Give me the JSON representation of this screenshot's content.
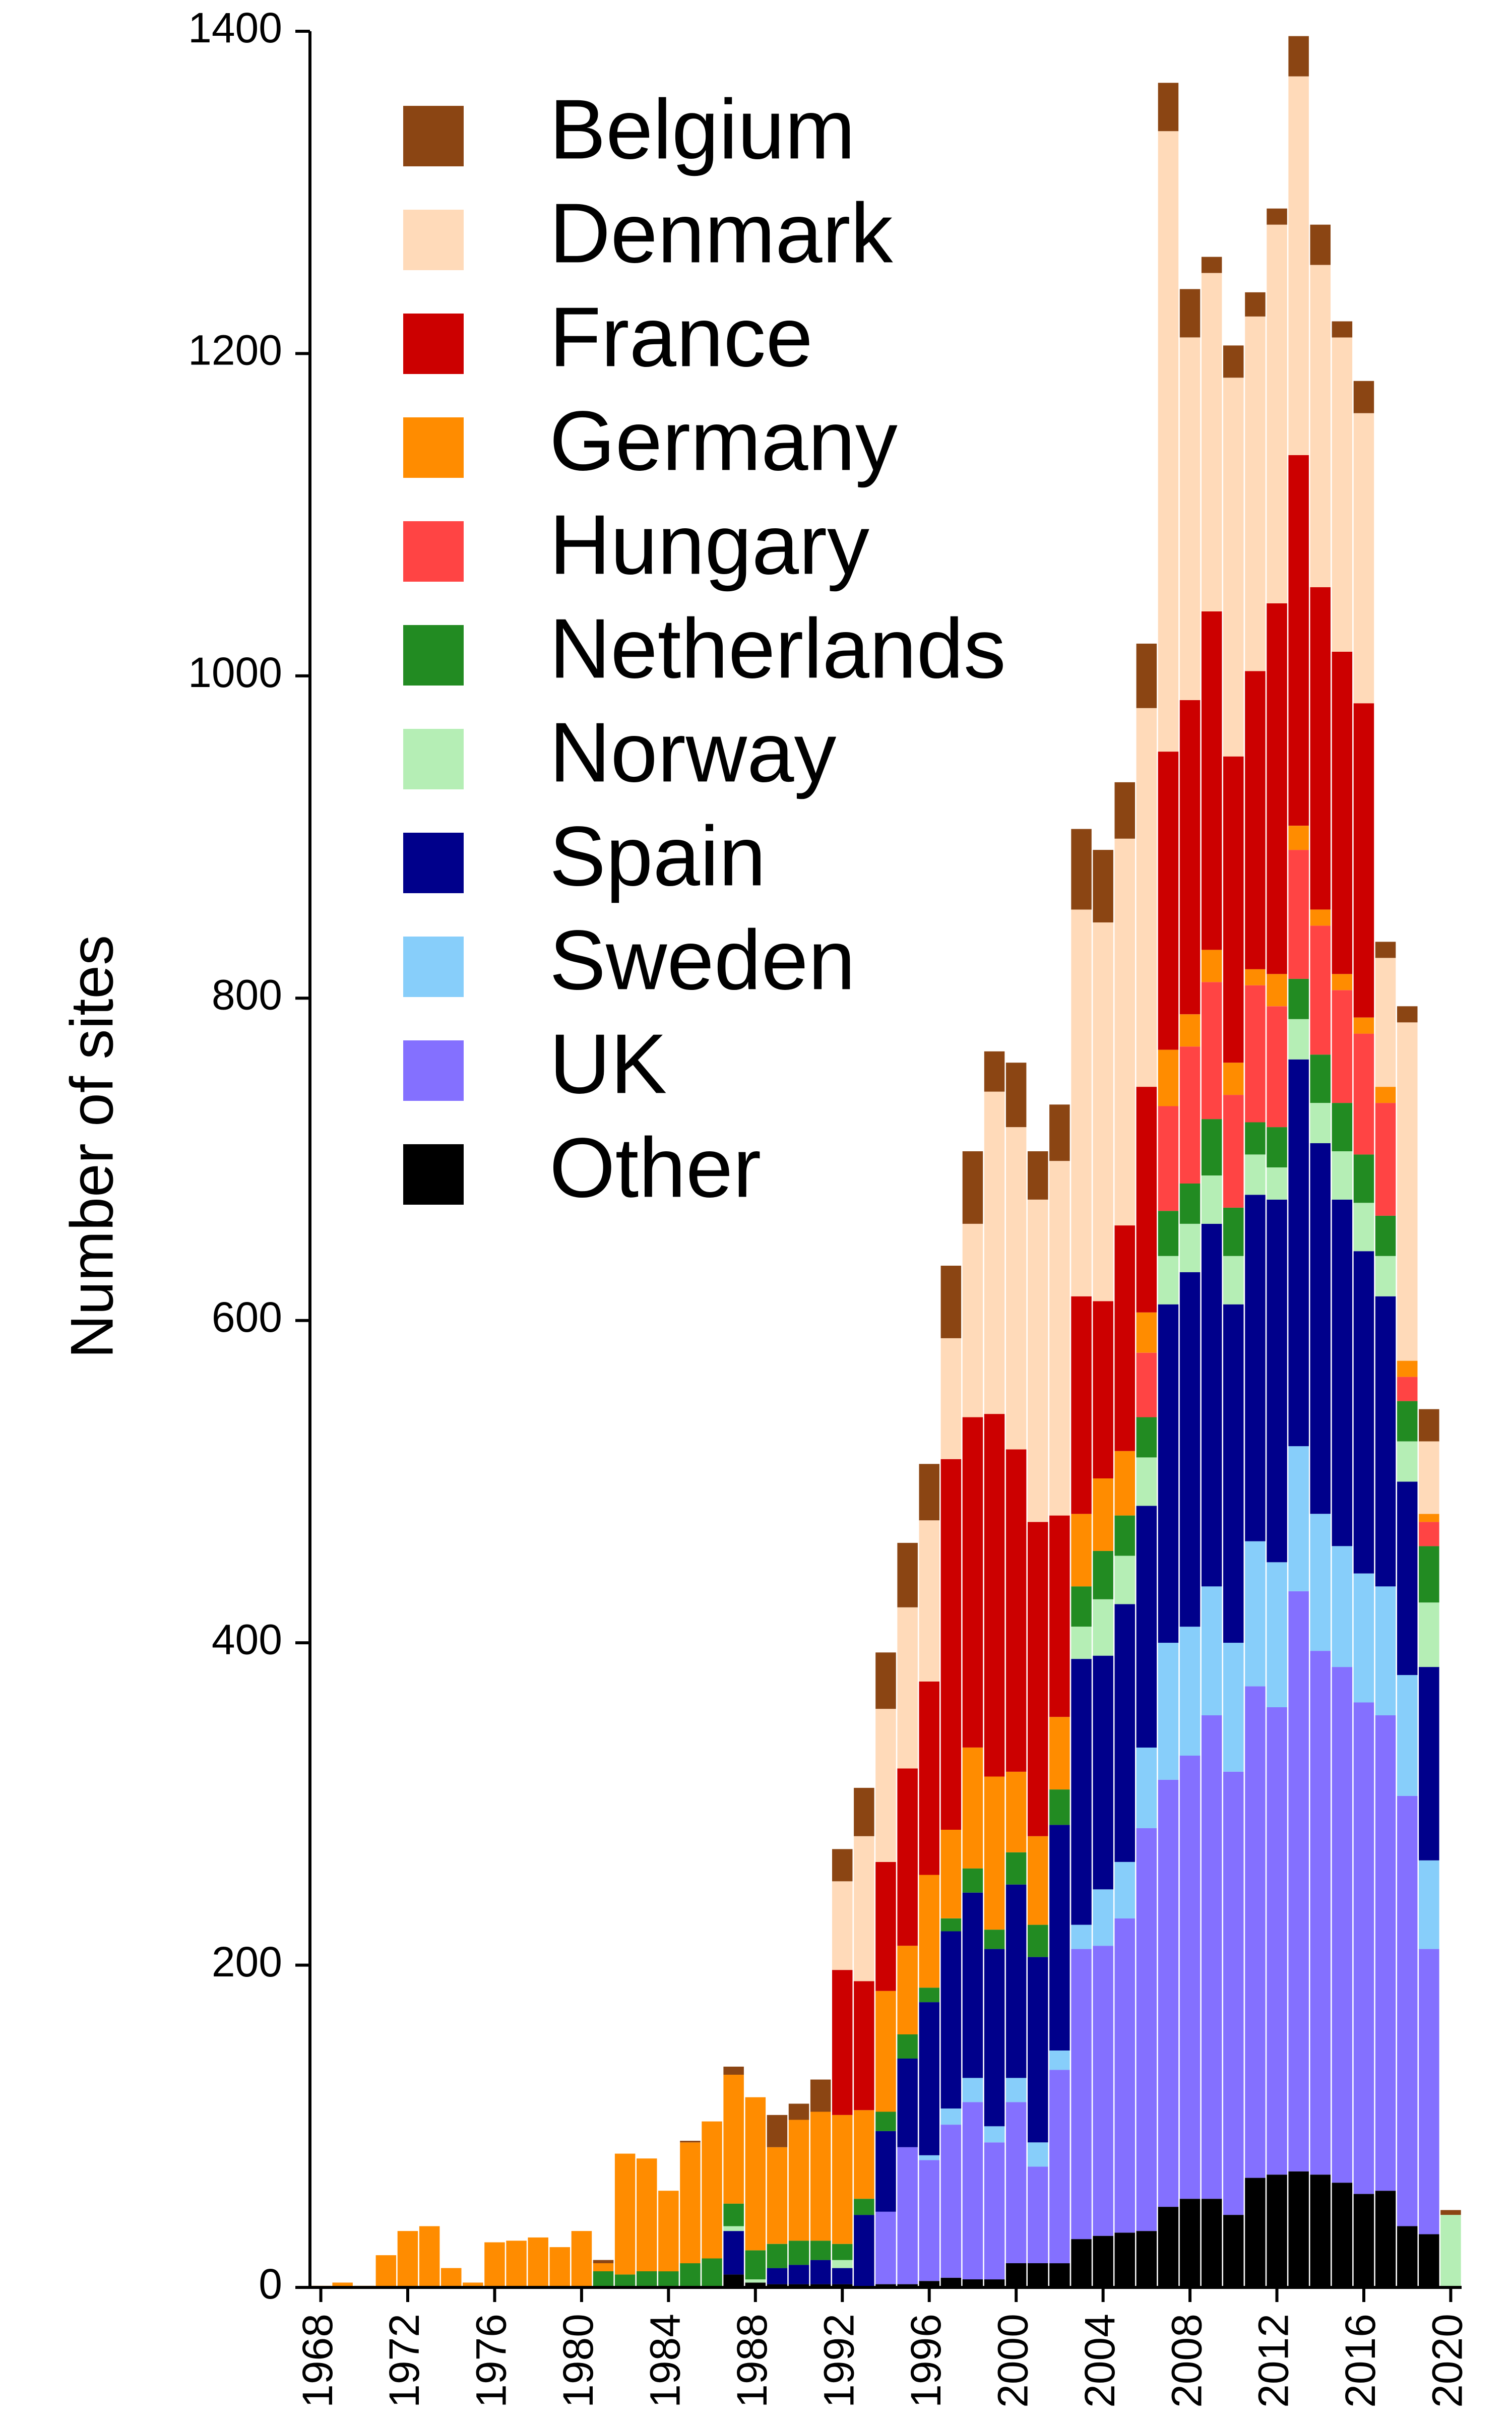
{
  "chart_data": {
    "type": "bar",
    "stacked": true,
    "title": "",
    "xlabel": "",
    "ylabel": "Number of sites",
    "ylim": [
      0,
      1400
    ],
    "yticks": [
      0,
      200,
      400,
      600,
      800,
      1000,
      1200,
      1400
    ],
    "xticks": [
      1968,
      1972,
      1976,
      1980,
      1984,
      1988,
      1992,
      1996,
      2000,
      2004,
      2008,
      2012,
      2016,
      2020
    ],
    "grid": false,
    "legend_placement": "top-left",
    "x": [
      1968,
      1969,
      1970,
      1971,
      1972,
      1973,
      1974,
      1975,
      1976,
      1977,
      1978,
      1979,
      1980,
      1981,
      1982,
      1983,
      1984,
      1985,
      1986,
      1987,
      1988,
      1989,
      1990,
      1991,
      1992,
      1993,
      1994,
      1995,
      1996,
      1997,
      1998,
      1999,
      2000,
      2001,
      2002,
      2003,
      2004,
      2005,
      2006,
      2007,
      2008,
      2009,
      2010,
      2011,
      2012,
      2013,
      2014,
      2015,
      2016,
      2017,
      2018,
      2019,
      2020
    ],
    "series": [
      {
        "name": "Other",
        "color": "#000000",
        "values": [
          0,
          0,
          0,
          0,
          0,
          0,
          0,
          0,
          0,
          0,
          0,
          0,
          0,
          0,
          0,
          0,
          0,
          0,
          0,
          8,
          3,
          2,
          2,
          2,
          2,
          0,
          2,
          2,
          4,
          6,
          5,
          5,
          15,
          15,
          15,
          30,
          32,
          34,
          35,
          50,
          55,
          55,
          45,
          68,
          70,
          72,
          70,
          65,
          58,
          60,
          38,
          33,
          0
        ]
      },
      {
        "name": "UK",
        "color": "#8470FF",
        "values": [
          0,
          0,
          0,
          0,
          0,
          0,
          0,
          0,
          0,
          0,
          0,
          0,
          0,
          0,
          0,
          0,
          0,
          0,
          0,
          0,
          0,
          0,
          0,
          0,
          0,
          0,
          45,
          85,
          75,
          95,
          110,
          85,
          100,
          60,
          120,
          180,
          180,
          195,
          250,
          265,
          275,
          300,
          275,
          305,
          290,
          360,
          325,
          320,
          305,
          295,
          267,
          177,
          0
        ]
      },
      {
        "name": "Sweden",
        "color": "#87CEFA",
        "values": [
          0,
          0,
          0,
          0,
          0,
          0,
          0,
          0,
          0,
          0,
          0,
          0,
          0,
          0,
          0,
          0,
          0,
          0,
          0,
          0,
          0,
          0,
          0,
          0,
          0,
          0,
          0,
          0,
          3,
          10,
          15,
          10,
          15,
          15,
          12,
          15,
          35,
          35,
          50,
          85,
          80,
          80,
          80,
          90,
          90,
          90,
          85,
          75,
          80,
          80,
          75,
          55,
          0
        ]
      },
      {
        "name": "Spain",
        "color": "#00008B",
        "values": [
          0,
          0,
          0,
          0,
          0,
          0,
          0,
          0,
          0,
          0,
          0,
          0,
          0,
          0,
          0,
          0,
          0,
          0,
          0,
          27,
          0,
          10,
          12,
          15,
          10,
          45,
          50,
          55,
          95,
          110,
          115,
          110,
          120,
          115,
          140,
          165,
          145,
          160,
          150,
          210,
          220,
          225,
          210,
          215,
          225,
          240,
          230,
          215,
          200,
          180,
          120,
          120,
          0
        ]
      },
      {
        "name": "Norway",
        "color": "#B5EEB5",
        "values": [
          0,
          0,
          0,
          0,
          0,
          0,
          0,
          0,
          0,
          0,
          0,
          0,
          0,
          0,
          0,
          0,
          0,
          0,
          0,
          3,
          2,
          0,
          0,
          0,
          5,
          0,
          0,
          0,
          0,
          0,
          0,
          0,
          0,
          0,
          0,
          20,
          35,
          30,
          30,
          30,
          30,
          30,
          30,
          25,
          20,
          25,
          25,
          30,
          30,
          25,
          25,
          40,
          45
        ]
      },
      {
        "name": "Netherlands",
        "color": "#228B22",
        "values": [
          0,
          0,
          0,
          0,
          0,
          0,
          0,
          0,
          0,
          0,
          0,
          0,
          0,
          10,
          8,
          10,
          10,
          15,
          18,
          14,
          18,
          15,
          15,
          12,
          10,
          10,
          12,
          15,
          9,
          8,
          15,
          12,
          20,
          20,
          22,
          25,
          30,
          25,
          25,
          28,
          25,
          35,
          30,
          20,
          25,
          25,
          30,
          30,
          30,
          25,
          25,
          35,
          0
        ]
      },
      {
        "name": "Hungary",
        "color": "#FF4444",
        "values": [
          0,
          0,
          0,
          0,
          0,
          0,
          0,
          0,
          0,
          0,
          0,
          0,
          0,
          0,
          0,
          0,
          0,
          0,
          0,
          0,
          0,
          0,
          0,
          0,
          0,
          0,
          0,
          0,
          0,
          0,
          0,
          0,
          0,
          0,
          0,
          0,
          0,
          0,
          40,
          65,
          85,
          85,
          70,
          85,
          75,
          80,
          80,
          70,
          75,
          70,
          15,
          15,
          0
        ]
      },
      {
        "name": "Germany",
        "color": "#FF8C00",
        "values": [
          1,
          3,
          1,
          20,
          35,
          38,
          12,
          3,
          28,
          29,
          31,
          25,
          35,
          5,
          75,
          70,
          50,
          75,
          85,
          80,
          95,
          60,
          75,
          80,
          80,
          55,
          75,
          55,
          70,
          55,
          75,
          95,
          50,
          55,
          45,
          45,
          45,
          40,
          25,
          35,
          20,
          20,
          20,
          10,
          20,
          15,
          10,
          10,
          10,
          10,
          10,
          5,
          0
        ]
      },
      {
        "name": "France",
        "color": "#CC0000",
        "values": [
          0,
          0,
          0,
          0,
          0,
          0,
          0,
          0,
          0,
          0,
          0,
          0,
          0,
          0,
          0,
          0,
          0,
          0,
          0,
          0,
          0,
          0,
          0,
          0,
          90,
          80,
          80,
          110,
          120,
          230,
          205,
          225,
          200,
          195,
          125,
          135,
          110,
          140,
          140,
          185,
          195,
          210,
          190,
          185,
          230,
          230,
          200,
          200,
          195,
          0,
          0,
          0,
          0
        ]
      },
      {
        "name": "Denmark",
        "color": "#FFDAB9",
        "values": [
          0,
          0,
          0,
          0,
          0,
          0,
          0,
          0,
          0,
          0,
          0,
          0,
          0,
          0,
          0,
          0,
          0,
          0,
          0,
          0,
          0,
          0,
          0,
          0,
          55,
          90,
          95,
          100,
          100,
          75,
          120,
          200,
          200,
          200,
          220,
          240,
          235,
          240,
          235,
          385,
          225,
          210,
          235,
          220,
          235,
          235,
          200,
          195,
          180,
          80,
          210,
          45,
          0
        ]
      },
      {
        "name": "Belgium",
        "color": "#8B4513",
        "values": [
          0,
          0,
          0,
          0,
          0,
          0,
          0,
          0,
          0,
          0,
          0,
          0,
          0,
          2,
          0,
          0,
          0,
          1,
          0,
          5,
          0,
          20,
          10,
          20,
          20,
          30,
          35,
          40,
          35,
          45,
          45,
          25,
          40,
          30,
          35,
          50,
          45,
          35,
          40,
          30,
          30,
          10,
          20,
          15,
          10,
          25,
          25,
          10,
          20,
          10,
          10,
          20,
          3
        ]
      }
    ]
  }
}
